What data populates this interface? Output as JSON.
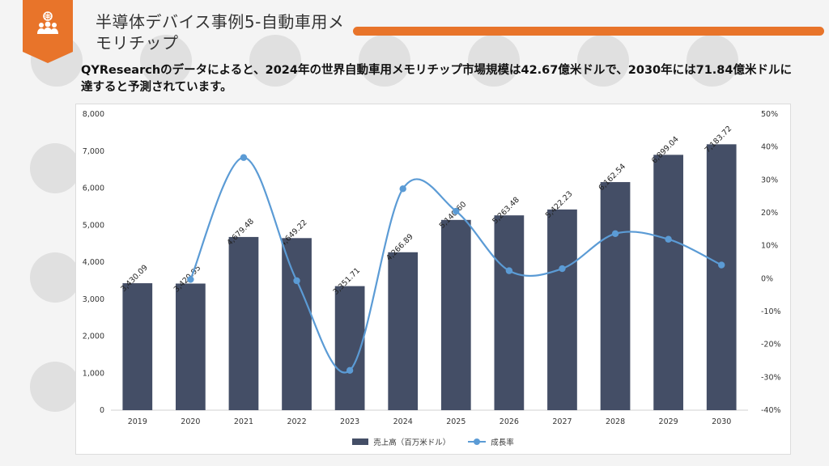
{
  "slide": {
    "title": "半導体デバイス事例5-自動車用メモリチップ",
    "description": "QYResearchのデータによると、2024年の世界自動車用メモリチップ市場規模は42.67億米ドルで、2030年には71.84億米ドルに達すると予測されています。",
    "icon": "people-network-icon",
    "accent_color": "#e8742a"
  },
  "chart_data": {
    "type": "bar",
    "categories": [
      "2019",
      "2020",
      "2021",
      "2022",
      "2023",
      "2024",
      "2025",
      "2026",
      "2027",
      "2028",
      "2029",
      "2030"
    ],
    "series": [
      {
        "name": "売上高（百万米ドル）",
        "type": "bar",
        "axis": "left",
        "color": "#444e66",
        "values": [
          3430.09,
          3420.95,
          4679.48,
          4649.22,
          3351.71,
          4266.89,
          5140.6,
          5263.48,
          5422.23,
          6162.54,
          6899.04,
          7183.72
        ],
        "labels": [
          "3,430.09",
          "3,420.95",
          "4,679.48",
          "4,649.22",
          "3,351.71",
          "4,266.89",
          "5,140.60",
          "5,263.48",
          "5,422.23",
          "6,162.54",
          "6,899.04",
          "7,183.72"
        ]
      },
      {
        "name": "成長率",
        "type": "line",
        "axis": "right",
        "color": "#5b9bd5",
        "values": [
          null,
          -0.27,
          36.79,
          -0.65,
          -27.91,
          27.3,
          20.48,
          2.39,
          3.02,
          13.65,
          11.95,
          4.13
        ]
      }
    ],
    "y_left": {
      "range": [
        0,
        8000
      ],
      "ticks": [
        "0",
        "1,000",
        "2,000",
        "3,000",
        "4,000",
        "5,000",
        "6,000",
        "7,000",
        "8,000"
      ]
    },
    "y_right": {
      "range": [
        -40,
        50
      ],
      "ticks": [
        "-40%",
        "-30%",
        "-20%",
        "-10%",
        "0%",
        "10%",
        "20%",
        "30%",
        "40%",
        "50%"
      ]
    },
    "grid": false,
    "legend_position": "bottom"
  }
}
